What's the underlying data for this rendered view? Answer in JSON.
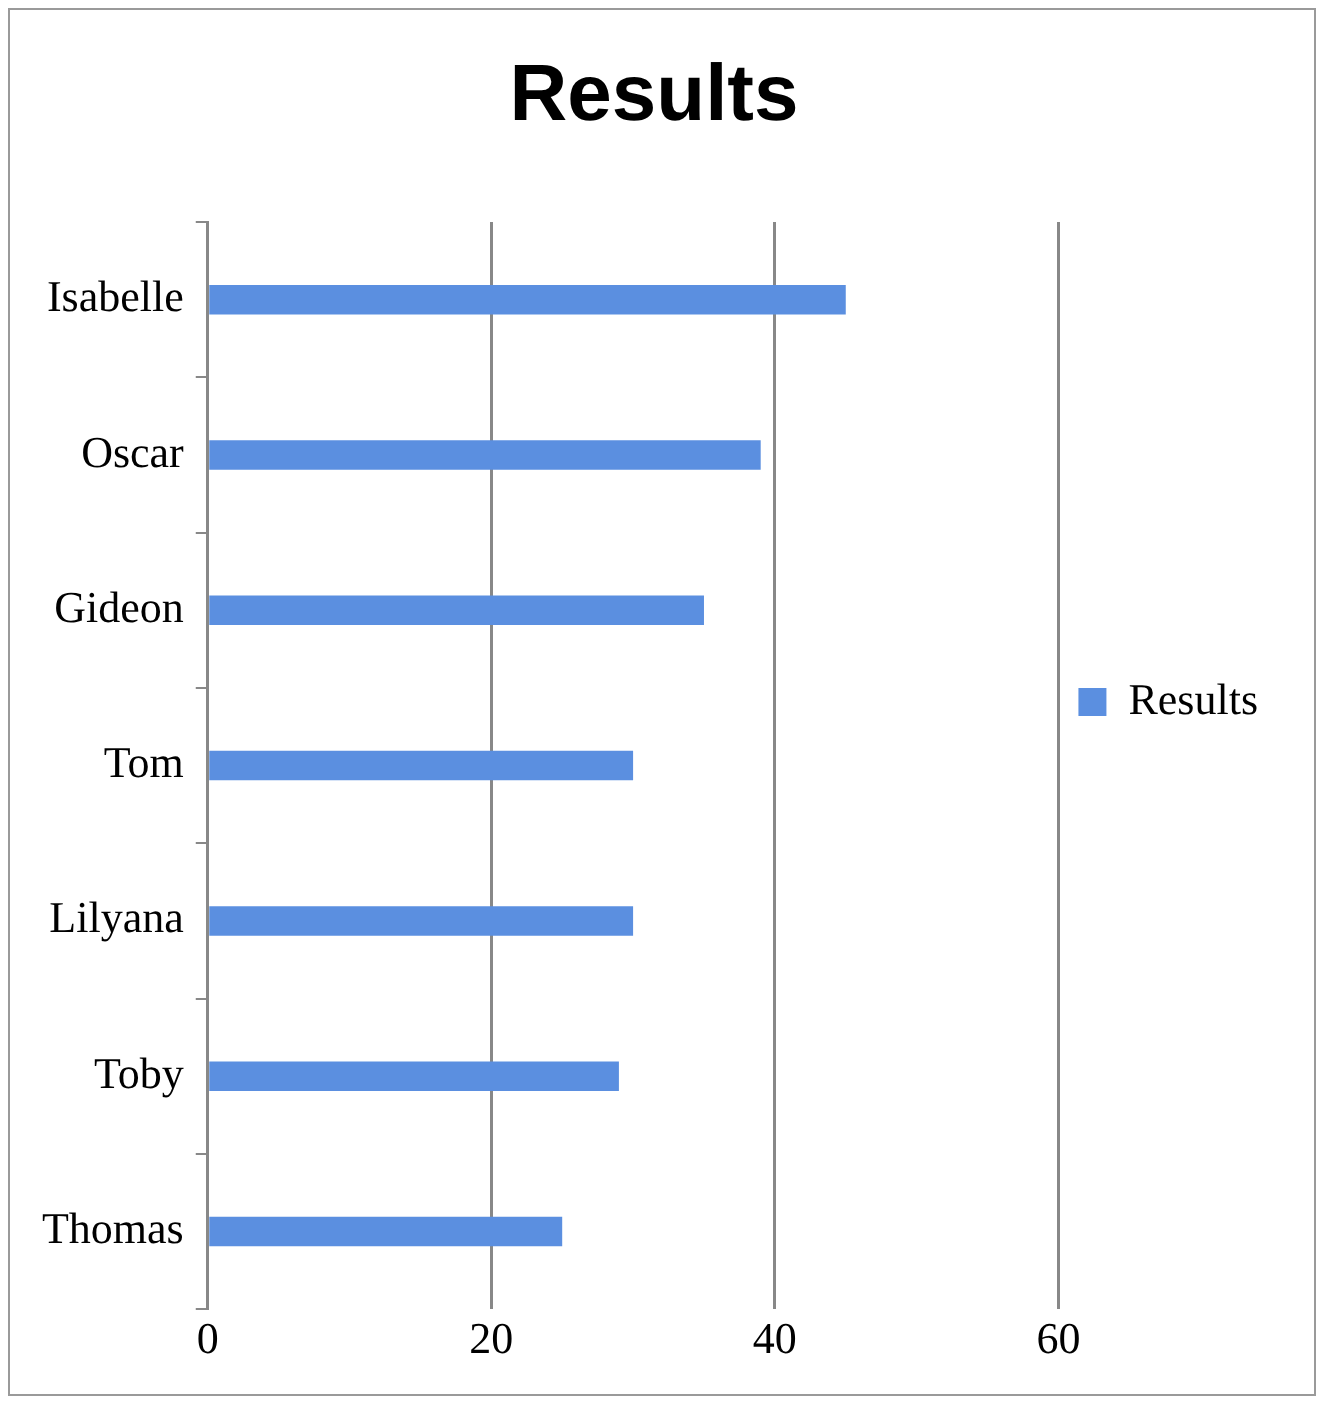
{
  "chart_data": {
    "type": "bar",
    "orientation": "horizontal",
    "title": "Results",
    "categories": [
      "Isabelle",
      "Oscar",
      "Gideon",
      "Tom",
      "Lilyana",
      "Toby",
      "Thomas"
    ],
    "series": [
      {
        "name": "Results",
        "color": "#5b8fe0",
        "values": [
          45,
          39,
          35,
          30,
          30,
          29,
          25
        ]
      }
    ],
    "xlim": [
      0,
      60
    ],
    "xticks": [
      0,
      20,
      40,
      60
    ],
    "grid": "x",
    "legend": "right"
  }
}
